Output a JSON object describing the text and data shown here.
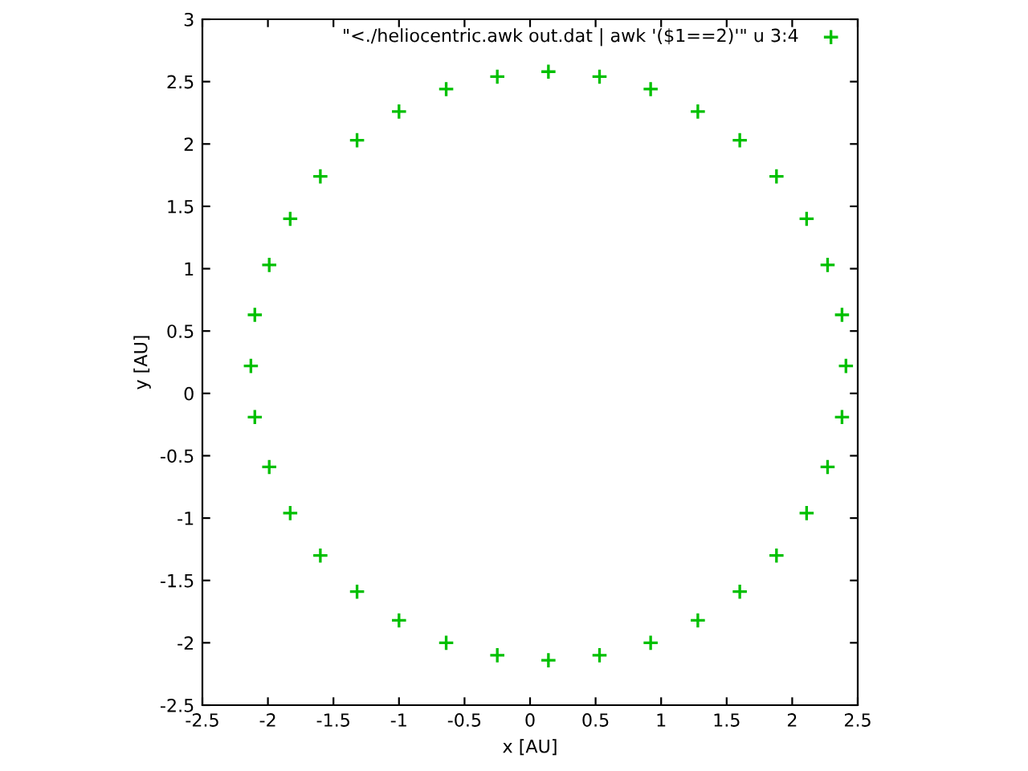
{
  "chart_data": {
    "type": "scatter",
    "xlabel": "x [AU]",
    "ylabel": "y [AU]",
    "series": [
      {
        "name": "\"<./heliocentric.awk out.dat | awk '($1==2)'\" u 3:4",
        "color": "#00c000",
        "x": [
          2.41,
          2.38,
          2.27,
          2.11,
          1.88,
          1.6,
          1.28,
          0.92,
          0.53,
          0.14,
          -0.25,
          -0.64,
          -1.0,
          -1.32,
          -1.6,
          -1.83,
          -1.99,
          -2.1,
          -2.13,
          -2.1,
          -1.99,
          -1.83,
          -1.6,
          -1.32,
          -1.0,
          -0.64,
          -0.25,
          0.14,
          0.53,
          0.92,
          1.28,
          1.6,
          1.88,
          2.11,
          2.27,
          2.38
        ],
        "values": [
          0.22,
          0.63,
          1.03,
          1.4,
          1.74,
          2.03,
          2.26,
          2.44,
          2.54,
          2.58,
          2.54,
          2.44,
          2.26,
          2.03,
          1.74,
          1.4,
          1.03,
          0.63,
          0.22,
          -0.19,
          -0.59,
          -0.96,
          -1.3,
          -1.59,
          -1.82,
          -2.0,
          -2.1,
          -2.14,
          -2.1,
          -2.0,
          -1.82,
          -1.59,
          -1.3,
          -0.96,
          -0.59,
          -0.19
        ]
      }
    ],
    "xlim": [
      -2.5,
      2.5
    ],
    "xticks": [
      -2.5,
      -2,
      -1.5,
      -1,
      -0.5,
      0,
      0.5,
      1,
      1.5,
      2,
      2.5
    ],
    "ylim": [
      -2.5,
      3
    ],
    "yticks": [
      -2.5,
      -2,
      -1.5,
      -1,
      -0.5,
      0,
      0.5,
      1,
      1.5,
      2,
      2.5,
      3
    ],
    "marker": "cross",
    "legend": "top right",
    "grid": false
  }
}
